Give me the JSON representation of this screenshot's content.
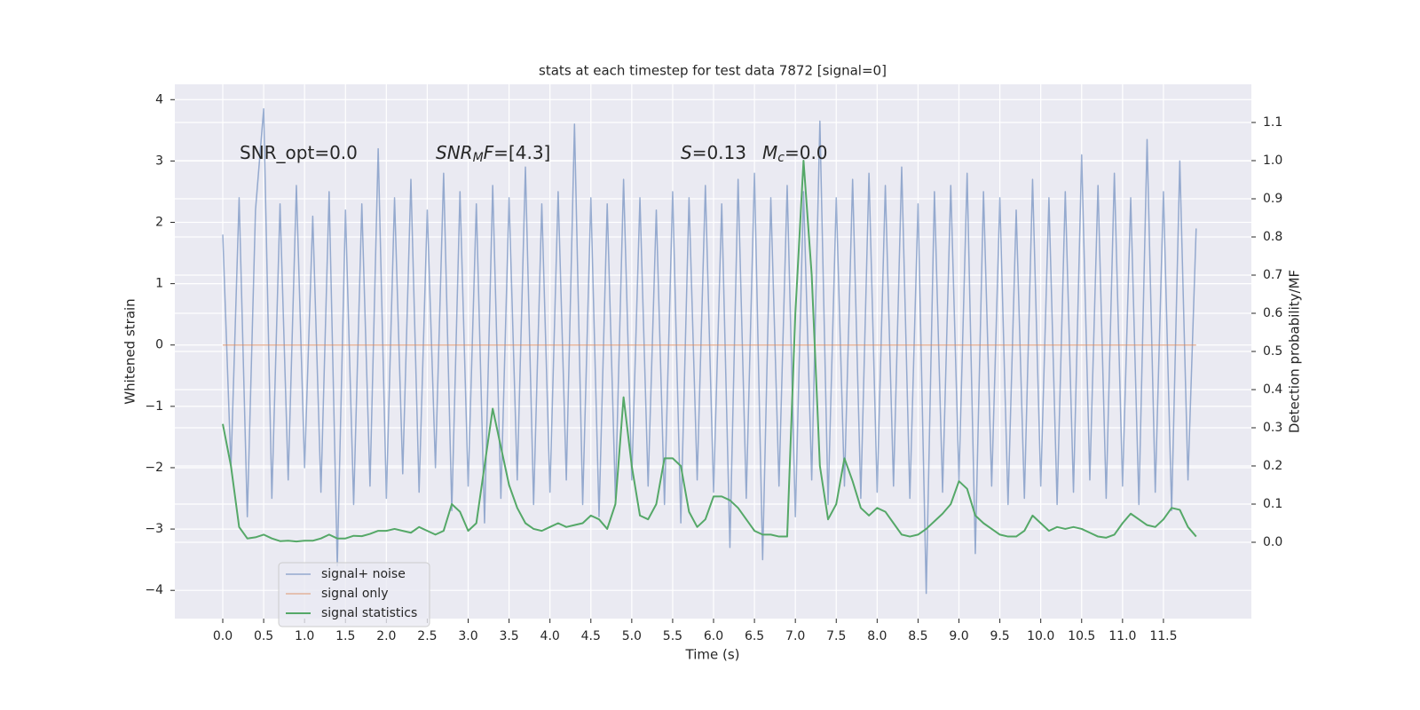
{
  "chart_data": {
    "type": "line",
    "title": "stats at each timestep for test data 7872 [signal=0]",
    "xlabel": "Time (s)",
    "ylabel": "Whitened strain",
    "y2label": "Detection probability/MF",
    "annotations": [
      [
        {
          "text": "SNR_opt=0.0"
        }
      ],
      [
        {
          "text": "SNR",
          "italic": true
        },
        {
          "text": "M",
          "italic": true,
          "sub": true
        },
        {
          "text": "F",
          "italic": true
        },
        {
          "text": "=[4.3]"
        }
      ],
      [
        {
          "text": "S",
          "italic": true
        },
        {
          "text": "=0.13"
        }
      ],
      [
        {
          "text": "M",
          "italic": true
        },
        {
          "text": "c",
          "italic": true,
          "sub": true
        },
        {
          "text": "=0.0"
        }
      ]
    ],
    "x": [
      0,
      0.1,
      0.2,
      0.3,
      0.4,
      0.5,
      0.6,
      0.7,
      0.8,
      0.9,
      1,
      1.1,
      1.2,
      1.3,
      1.4,
      1.5,
      1.6,
      1.7,
      1.8,
      1.9,
      2,
      2.1,
      2.2,
      2.3,
      2.4,
      2.5,
      2.6,
      2.7,
      2.8,
      2.9,
      3,
      3.1,
      3.2,
      3.3,
      3.4,
      3.5,
      3.6,
      3.7,
      3.8,
      3.9,
      4,
      4.1,
      4.2,
      4.3,
      4.4,
      4.5,
      4.6,
      4.7,
      4.8,
      4.9,
      5,
      5.1,
      5.2,
      5.3,
      5.4,
      5.5,
      5.6,
      5.7,
      5.8,
      5.9,
      6,
      6.1,
      6.2,
      6.3,
      6.4,
      6.5,
      6.6,
      6.7,
      6.8,
      6.9,
      7,
      7.1,
      7.2,
      7.3,
      7.4,
      7.5,
      7.6,
      7.7,
      7.8,
      7.9,
      8,
      8.1,
      8.2,
      8.3,
      8.4,
      8.5,
      8.6,
      8.7,
      8.8,
      8.9,
      9,
      9.1,
      9.2,
      9.3,
      9.4,
      9.5,
      9.6,
      9.7,
      9.8,
      9.9,
      10,
      10.1,
      10.2,
      10.3,
      10.4,
      10.5,
      10.6,
      10.7,
      10.8,
      10.9,
      11,
      11.1,
      11.2,
      11.3,
      11.4,
      11.5,
      11.6,
      11.7,
      11.8,
      11.9
    ],
    "series": [
      {
        "name": "signal+ noise",
        "color": "#4c72b0",
        "opacity": 0.55,
        "values": [
          1.8,
          -2.0,
          2.4,
          -2.8,
          2.2,
          3.85,
          -2.5,
          2.3,
          -2.2,
          2.6,
          -2.0,
          2.1,
          -2.4,
          2.5,
          -3.6,
          2.2,
          -2.6,
          2.3,
          -2.3,
          3.2,
          -2.5,
          2.4,
          -2.1,
          2.7,
          -2.4,
          2.2,
          -2.0,
          2.8,
          -2.7,
          2.5,
          -2.3,
          2.3,
          -2.9,
          2.6,
          -2.5,
          2.4,
          -2.2,
          2.9,
          -2.6,
          2.3,
          -2.4,
          2.5,
          -2.2,
          3.6,
          -2.6,
          2.4,
          -2.8,
          2.3,
          -2.5,
          2.7,
          -2.2,
          2.4,
          -2.3,
          2.2,
          -2.6,
          2.5,
          -2.9,
          2.4,
          -2.2,
          2.6,
          -2.4,
          2.3,
          -3.3,
          2.7,
          -2.5,
          2.8,
          -3.5,
          2.4,
          -2.3,
          2.6,
          -2.8,
          2.5,
          -2.2,
          3.65,
          -2.6,
          2.4,
          -2.3,
          2.7,
          -2.5,
          2.8,
          -2.4,
          2.6,
          -2.3,
          2.9,
          -2.5,
          2.3,
          -4.05,
          2.5,
          -2.4,
          2.6,
          -2.2,
          2.8,
          -3.4,
          2.5,
          -2.3,
          2.4,
          -2.6,
          2.2,
          -2.5,
          2.7,
          -2.3,
          2.4,
          -2.6,
          2.5,
          -2.4,
          3.1,
          -2.2,
          2.6,
          -2.5,
          2.8,
          -2.3,
          2.4,
          -2.6,
          3.35,
          -2.4,
          2.5,
          -2.7,
          3.0,
          -2.2,
          1.9
        ]
      },
      {
        "name": "signal only",
        "color": "#dd8452",
        "opacity": 0.55,
        "values": [
          0,
          0,
          0,
          0,
          0,
          0,
          0,
          0,
          0,
          0,
          0,
          0,
          0,
          0,
          0,
          0,
          0,
          0,
          0,
          0,
          0,
          0,
          0,
          0,
          0,
          0,
          0,
          0,
          0,
          0,
          0,
          0,
          0,
          0,
          0,
          0,
          0,
          0,
          0,
          0,
          0,
          0,
          0,
          0,
          0,
          0,
          0,
          0,
          0,
          0,
          0,
          0,
          0,
          0,
          0,
          0,
          0,
          0,
          0,
          0,
          0,
          0,
          0,
          0,
          0,
          0,
          0,
          0,
          0,
          0,
          0,
          0,
          0,
          0,
          0,
          0,
          0,
          0,
          0,
          0,
          0,
          0,
          0,
          0,
          0,
          0,
          0,
          0,
          0,
          0,
          0,
          0,
          0,
          0,
          0,
          0,
          0,
          0,
          0,
          0,
          0,
          0,
          0,
          0,
          0,
          0,
          0,
          0,
          0,
          0,
          0,
          0,
          0,
          0,
          0,
          0,
          0,
          0,
          0,
          0
        ]
      },
      {
        "name": "signal statistics",
        "color": "#55a868",
        "opacity": 1,
        "axis": "y2",
        "values": [
          0.31,
          0.2,
          0.04,
          0.01,
          0.013,
          0.02,
          0.01,
          0.003,
          0.004,
          0.002,
          0.004,
          0.004,
          0.01,
          0.02,
          0.01,
          0.01,
          0.017,
          0.016,
          0.022,
          0.03,
          0.03,
          0.035,
          0.03,
          0.025,
          0.04,
          0.03,
          0.02,
          0.03,
          0.1,
          0.08,
          0.03,
          0.05,
          0.2,
          0.35,
          0.25,
          0.15,
          0.09,
          0.05,
          0.035,
          0.03,
          0.04,
          0.05,
          0.04,
          0.045,
          0.05,
          0.07,
          0.06,
          0.035,
          0.1,
          0.38,
          0.2,
          0.07,
          0.06,
          0.1,
          0.22,
          0.22,
          0.2,
          0.08,
          0.04,
          0.06,
          0.12,
          0.12,
          0.11,
          0.09,
          0.06,
          0.03,
          0.02,
          0.02,
          0.015,
          0.015,
          0.6,
          1.0,
          0.7,
          0.2,
          0.06,
          0.1,
          0.22,
          0.16,
          0.09,
          0.07,
          0.09,
          0.08,
          0.05,
          0.02,
          0.015,
          0.02,
          0.035,
          0.055,
          0.075,
          0.1,
          0.16,
          0.14,
          0.07,
          0.05,
          0.035,
          0.02,
          0.015,
          0.015,
          0.03,
          0.07,
          0.05,
          0.03,
          0.04,
          0.035,
          0.04,
          0.035,
          0.025,
          0.015,
          0.012,
          0.02,
          0.05,
          0.075,
          0.06,
          0.045,
          0.04,
          0.06,
          0.09,
          0.085,
          0.04,
          0.015
        ]
      }
    ],
    "xlim": [
      -0.586,
      12.575
    ],
    "xticks": [
      {
        "value": 0,
        "label": "0.0"
      },
      0.5,
      {
        "value": 1,
        "label": "1.0"
      },
      1.5,
      {
        "value": 2,
        "label": "2.0"
      },
      2.5,
      {
        "value": 3,
        "label": "3.0"
      },
      3.5,
      {
        "value": 4,
        "label": "4.0"
      },
      4.5,
      {
        "value": 5,
        "label": "5.0"
      },
      5.5,
      {
        "value": 6,
        "label": "6.0"
      },
      6.5,
      {
        "value": 7,
        "label": "7.0"
      },
      7.5,
      {
        "value": 8,
        "label": "8.0"
      },
      8.5,
      {
        "value": 9,
        "label": "9.0"
      },
      9.5,
      {
        "value": 10,
        "label": "10.0"
      },
      10.5,
      {
        "value": 11,
        "label": "11.0"
      },
      11.5
    ],
    "ylim": [
      -4.46,
      4.25
    ],
    "yticks": [
      {
        "value": -4,
        "label": "−4"
      },
      {
        "value": -3,
        "label": "−3"
      },
      {
        "value": -2,
        "label": "−2"
      },
      {
        "value": -1,
        "label": "−1"
      },
      0,
      1,
      2,
      3,
      4
    ],
    "y2lim": [
      -0.2,
      1.2
    ],
    "y2ticks": [
      {
        "value": 0,
        "label": "0.0"
      },
      0.1,
      0.2,
      0.3,
      0.4,
      0.5,
      0.6,
      0.7,
      0.8,
      0.9,
      {
        "value": 1,
        "label": "1.0"
      },
      1.1
    ],
    "grid": true,
    "legend": "lower left"
  }
}
